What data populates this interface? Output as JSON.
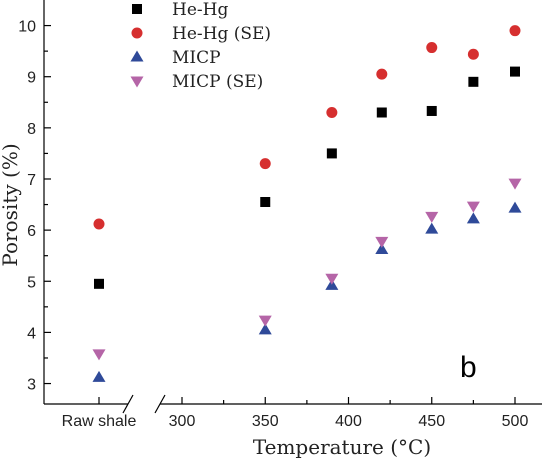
{
  "chart_data": {
    "type": "scatter",
    "xlabel": "Temperature (°C)",
    "ylabel": "Porosity (%)",
    "panel_label": "b",
    "ylim": [
      2.6,
      10.5
    ],
    "xlim": [
      280,
      510
    ],
    "x_break": true,
    "x_ticks": [
      300,
      350,
      400,
      450,
      500
    ],
    "y_ticks": [
      3,
      4,
      5,
      6,
      7,
      8,
      9,
      10
    ],
    "categorical_x": {
      "label": "Raw shale"
    },
    "legend_position": "top-left",
    "grid": false,
    "series": [
      {
        "name": "He-Hg",
        "marker": "square",
        "color": "#000000",
        "points": [
          {
            "x": "Raw shale",
            "y": 4.95
          },
          {
            "x": 350,
            "y": 6.55
          },
          {
            "x": 390,
            "y": 7.5
          },
          {
            "x": 420,
            "y": 8.3
          },
          {
            "x": 450,
            "y": 8.33
          },
          {
            "x": 475,
            "y": 8.9
          },
          {
            "x": 500,
            "y": 9.1
          }
        ]
      },
      {
        "name": "He-Hg (SE)",
        "marker": "circle",
        "color": "#d62f2f",
        "points": [
          {
            "x": "Raw shale",
            "y": 6.12
          },
          {
            "x": 350,
            "y": 7.3
          },
          {
            "x": 390,
            "y": 8.3
          },
          {
            "x": 420,
            "y": 9.05
          },
          {
            "x": 450,
            "y": 9.57
          },
          {
            "x": 475,
            "y": 9.44
          },
          {
            "x": 500,
            "y": 9.9
          }
        ]
      },
      {
        "name": "MICP",
        "marker": "triangle-up",
        "color": "#2f4a99",
        "points": [
          {
            "x": "Raw shale",
            "y": 3.12
          },
          {
            "x": 350,
            "y": 4.05
          },
          {
            "x": 390,
            "y": 4.92
          },
          {
            "x": 420,
            "y": 5.62
          },
          {
            "x": 450,
            "y": 6.02
          },
          {
            "x": 475,
            "y": 6.22
          },
          {
            "x": 500,
            "y": 6.43
          }
        ]
      },
      {
        "name": "MICP (SE)",
        "marker": "triangle-down",
        "color": "#b565a7",
        "points": [
          {
            "x": "Raw shale",
            "y": 3.58
          },
          {
            "x": 350,
            "y": 4.24
          },
          {
            "x": 390,
            "y": 5.06
          },
          {
            "x": 420,
            "y": 5.78
          },
          {
            "x": 450,
            "y": 6.27
          },
          {
            "x": 475,
            "y": 6.47
          },
          {
            "x": 500,
            "y": 6.92
          }
        ]
      }
    ]
  }
}
